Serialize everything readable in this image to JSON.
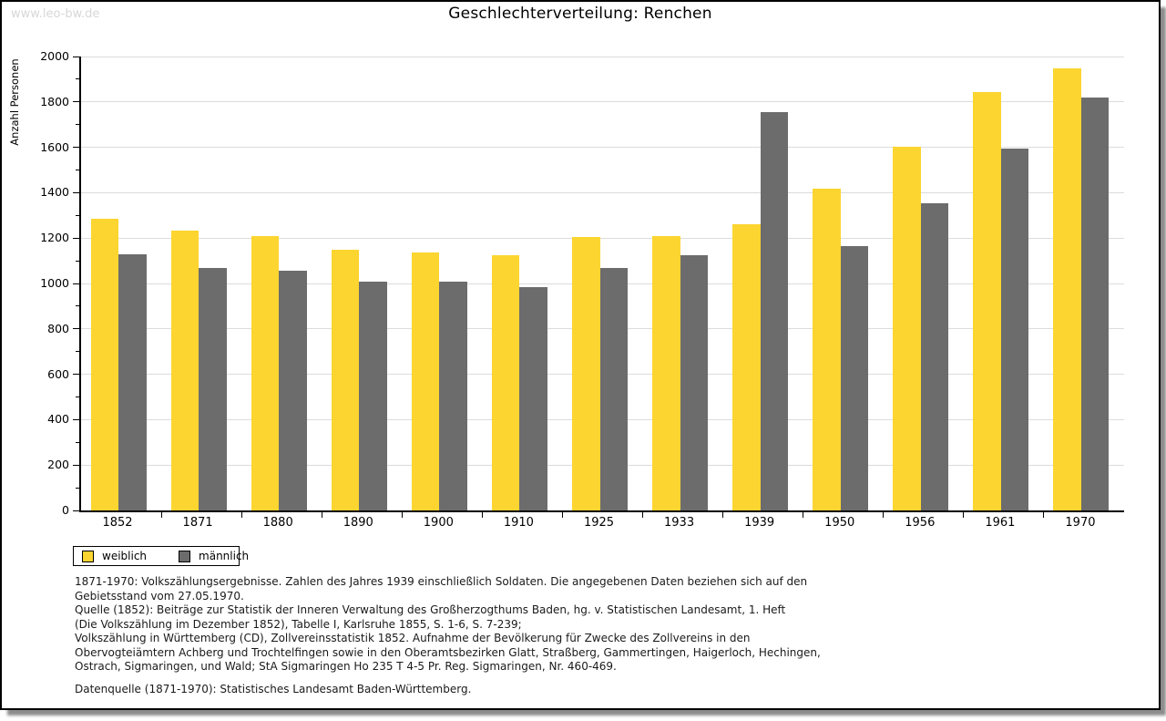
{
  "watermark": "www.leo-bw.de",
  "title": "Geschlechterverteilung: Renchen",
  "chart_data": {
    "type": "bar",
    "title": "Geschlechterverteilung: Renchen",
    "xlabel": "",
    "ylabel": "Anzahl Personen",
    "ylim": [
      0,
      2000
    ],
    "ytick_step": 200,
    "minor_tick_step": 100,
    "yticks": [
      0,
      200,
      400,
      600,
      800,
      1000,
      1200,
      1400,
      1600,
      1800,
      2000
    ],
    "grid": true,
    "legend_position": "bottom-left",
    "categories": [
      "1852",
      "1871",
      "1880",
      "1890",
      "1900",
      "1910",
      "1925",
      "1933",
      "1939",
      "1950",
      "1956",
      "1961",
      "1970"
    ],
    "series": [
      {
        "name": "weiblich",
        "color": "#FCD530",
        "values": [
          1285,
          1232,
          1209,
          1150,
          1137,
          1125,
          1205,
          1208,
          1261,
          1418,
          1602,
          1845,
          1948
        ]
      },
      {
        "name": "männlich",
        "color": "#6C6C6C",
        "values": [
          1130,
          1067,
          1056,
          1010,
          1008,
          982,
          1068,
          1126,
          1755,
          1165,
          1353,
          1594,
          1818
        ]
      }
    ]
  },
  "footnotes": [
    "1871-1970: Volkszählungsergebnisse. Zahlen des Jahres 1939 einschließlich Soldaten. Die angegebenen Daten beziehen sich auf den",
    "Gebietsstand vom 27.05.1970.",
    "Quelle (1852): Beiträge zur Statistik der Inneren Verwaltung des Großherzogthums Baden, hg. v. Statistischen Landesamt, 1. Heft",
    "(Die Volkszählung im Dezember 1852), Tabelle I, Karlsruhe 1855, S. 1-6, S. 7-239;",
    "Volkszählung in Württemberg (CD), Zollvereinsstatistik 1852. Aufnahme der Bevölkerung für Zwecke des Zollvereins in den",
    "Obervogteiämtern Achberg und Trochtelfingen sowie in den Oberamtsbezirken Glatt, Straßberg, Gammertingen, Haigerloch, Hechingen,",
    "Ostrach, Sigmaringen, und Wald; StA Sigmaringen Ho 235 T 4-5 Pr. Reg. Sigmaringen, Nr. 460-469."
  ],
  "datasource": "Datenquelle (1871-1970): Statistisches Landesamt Baden-Württemberg.",
  "colors": {
    "female_bar": "#FCD530",
    "male_bar": "#6C6C6C",
    "gridline": "#DCDCDC",
    "watermark": "#D7D7D7",
    "axis": "#000000"
  }
}
